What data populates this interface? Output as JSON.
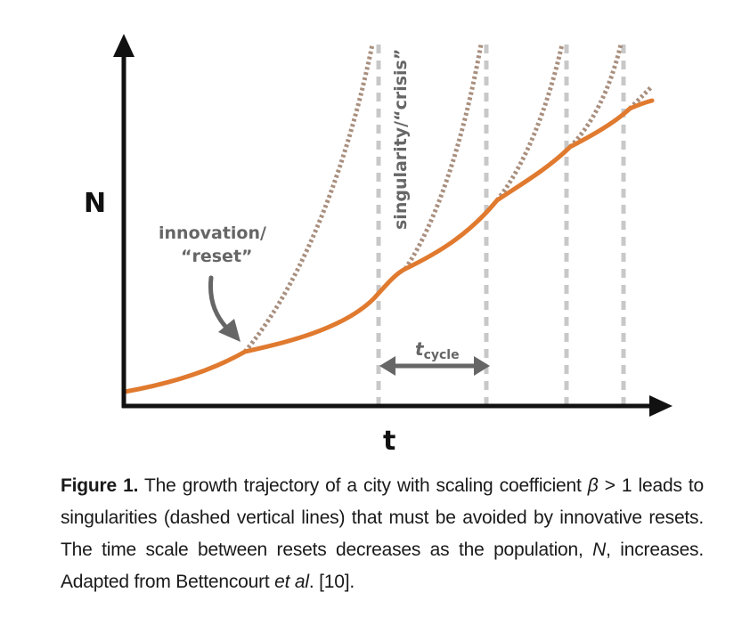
{
  "axes": {
    "y_label": "N",
    "x_label": "t"
  },
  "annotations": {
    "innovation_line1": "innovation/",
    "innovation_line2": "“reset”",
    "singularity": "singularity/“crisis”",
    "tcycle_main": "t",
    "tcycle_sub": "cycle"
  },
  "caption": {
    "figure_label": "Figure 1.",
    "text_a": " The growth trajectory of a city with scaling coefficient ",
    "beta": "β",
    "text_b": " > 1 leads to singularities (dashed vertical lines) that must be avoided by innovative resets. The time scale between resets decreases as the population, ",
    "n_symbol": "N",
    "text_c": ", increases. Adapted from Bettencourt ",
    "etal": "et al",
    "text_d": ". [10]."
  },
  "colors": {
    "growth_curve": "#e07a2f",
    "singular_curve": "#a98f7e",
    "dashed_lines": "#c8c8c8",
    "axes": "#111111",
    "annotation": "#666666"
  }
}
